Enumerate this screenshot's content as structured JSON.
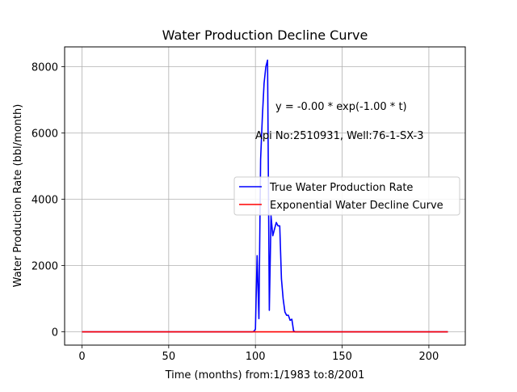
{
  "chart_data": {
    "type": "line",
    "title": "Water Production Decline Curve",
    "xlabel": "Time (months) from:1/1983 to:8/2001",
    "ylabel": "Water Production Rate (bbl/month)",
    "xlim": [
      -10,
      221
    ],
    "ylim": [
      -400,
      8600
    ],
    "xticks": [
      0,
      50,
      100,
      150,
      200
    ],
    "yticks": [
      0,
      2000,
      4000,
      6000,
      8000
    ],
    "grid": true,
    "legend_position": "center-right",
    "annotations": [
      {
        "text": "y = -0.00 * exp(-1.00 * t)",
        "x": 112,
        "y": 6700
      },
      {
        "text": "Api No:2510931, Well:76-1-SX-3",
        "x": 100,
        "y": 5830
      }
    ],
    "series": [
      {
        "name": "True Water Production Rate",
        "color": "#0000ff",
        "x": [
          0,
          30,
          98,
          99,
          100,
          101,
          102,
          103,
          104,
          105,
          106,
          107,
          108,
          109,
          110,
          111,
          112,
          113,
          114,
          115,
          116,
          117,
          118,
          119,
          120,
          121,
          122,
          123,
          124,
          150,
          200,
          211
        ],
        "y": [
          0,
          0,
          0,
          10,
          80,
          2300,
          400,
          5200,
          6500,
          7500,
          8000,
          8200,
          650,
          3500,
          2900,
          3100,
          3300,
          3200,
          3200,
          1600,
          1000,
          600,
          500,
          500,
          350,
          380,
          30,
          0,
          0,
          0,
          0,
          0
        ]
      },
      {
        "name": "Exponential Water Decline Curve",
        "color": "#ff0000",
        "x": [
          0,
          211
        ],
        "y": [
          0,
          0
        ]
      }
    ]
  }
}
